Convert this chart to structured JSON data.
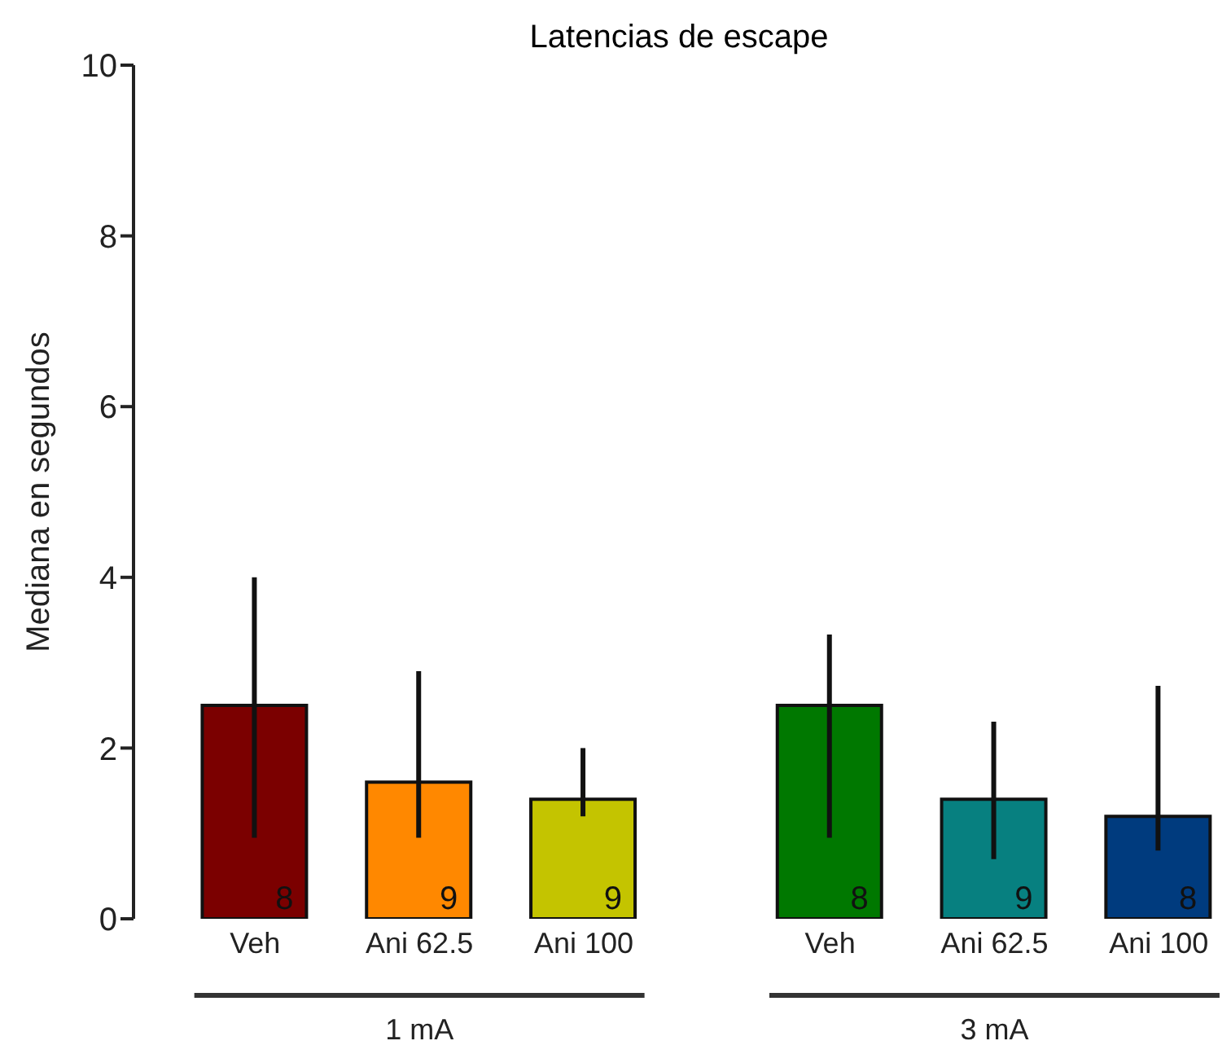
{
  "chart_data": {
    "type": "bar",
    "title": "Latencias de escape",
    "ylabel": "Mediana en segundos",
    "categories": [
      "Veh",
      "Ani 62.5",
      "Ani 100",
      "Veh",
      "Ani 62.5",
      "Ani 100"
    ],
    "values": [
      2.5,
      1.6,
      1.4,
      2.5,
      1.4,
      1.2
    ],
    "colors": [
      "#7b0000",
      "#ff8800",
      "#c4c400",
      "#007800",
      "#078080",
      "#003b7e"
    ],
    "errors": [
      [
        0.95,
        4.0
      ],
      [
        0.95,
        2.9
      ],
      [
        1.2,
        2.0
      ],
      [
        0.95,
        3.33
      ],
      [
        0.7,
        2.31
      ],
      [
        0.8,
        2.73
      ]
    ],
    "annotations": [
      "1 mA",
      "3 mA",
      {
        "text": "8",
        "y": 0
      },
      {
        "text": "9",
        "y": 0
      },
      {
        "text": "9",
        "y": 0
      },
      {
        "text": "8",
        "y": 0
      },
      {
        "text": "9",
        "y": 0
      },
      {
        "text": "8",
        "y": 0
      }
    ],
    "ylim": [
      0,
      10
    ],
    "yticks": [
      0,
      2,
      4,
      6,
      8,
      10
    ]
  }
}
